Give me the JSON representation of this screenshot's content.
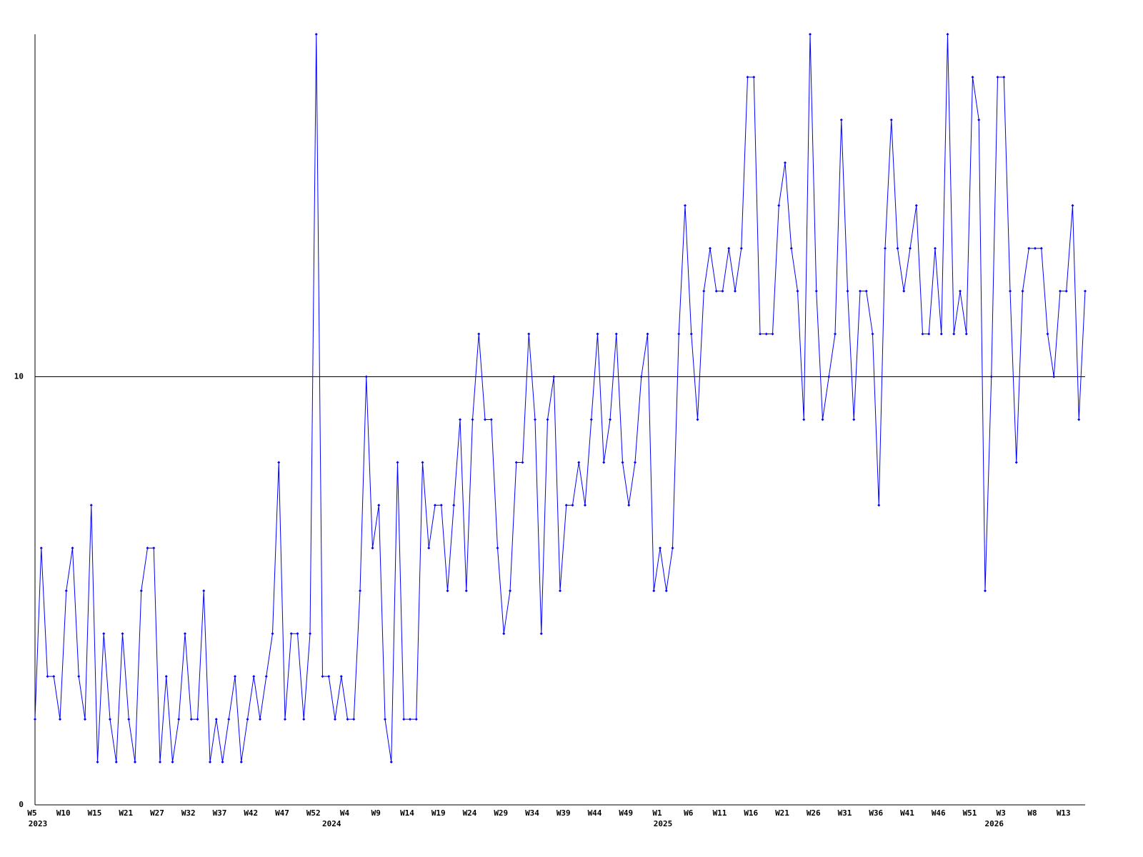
{
  "chart_data": {
    "type": "line",
    "color": "#0000ff",
    "values": [
      2,
      6,
      3,
      3,
      2,
      5,
      6,
      3,
      2,
      7,
      1,
      4,
      2,
      1,
      4,
      2,
      1,
      5,
      6,
      6,
      1,
      3,
      1,
      2,
      4,
      2,
      2,
      5,
      1,
      2,
      1,
      2,
      3,
      1,
      2,
      3,
      2,
      3,
      4,
      8,
      2,
      4,
      4,
      2,
      4,
      18,
      3,
      3,
      2,
      3,
      2,
      2,
      5,
      10,
      6,
      7,
      2,
      1,
      8,
      2,
      2,
      2,
      8,
      6,
      7,
      7,
      5,
      7,
      9,
      5,
      9,
      11,
      9,
      9,
      6,
      4,
      5,
      8,
      8,
      11,
      9,
      4,
      9,
      10,
      5,
      7,
      7,
      8,
      7,
      9,
      11,
      8,
      9,
      11,
      8,
      7,
      8,
      10,
      11,
      5,
      6,
      5,
      6,
      11,
      14,
      11,
      9,
      12,
      13,
      12,
      12,
      13,
      12,
      13,
      17,
      17,
      11,
      11,
      11,
      14,
      15,
      13,
      12,
      9,
      18,
      12,
      9,
      10,
      11,
      16,
      12,
      9,
      12,
      12,
      11,
      7,
      13,
      16,
      13,
      12,
      13,
      14,
      11,
      11,
      13,
      11,
      18,
      11,
      12,
      11,
      17,
      16,
      5,
      10,
      17,
      17,
      12,
      8,
      12,
      13,
      13,
      13,
      11,
      10,
      12,
      12,
      14,
      9,
      12
    ],
    "xlim": [
      0,
      168
    ],
    "xticks": [
      {
        "value": 0,
        "label": "W5"
      },
      {
        "value": 5,
        "label": "W10"
      },
      {
        "value": 10,
        "label": "W15"
      },
      {
        "value": 15,
        "label": "W21"
      },
      {
        "value": 20,
        "label": "W27"
      },
      {
        "value": 25,
        "label": "W32"
      },
      {
        "value": 30,
        "label": "W37"
      },
      {
        "value": 35,
        "label": "W42"
      },
      {
        "value": 40,
        "label": "W47"
      },
      {
        "value": 45,
        "label": "W52"
      },
      {
        "value": 50,
        "label": "W4"
      },
      {
        "value": 55,
        "label": "W9"
      },
      {
        "value": 60,
        "label": "W14"
      },
      {
        "value": 65,
        "label": "W19"
      },
      {
        "value": 70,
        "label": "W24"
      },
      {
        "value": 75,
        "label": "W29"
      },
      {
        "value": 80,
        "label": "W34"
      },
      {
        "value": 85,
        "label": "W39"
      },
      {
        "value": 90,
        "label": "W44"
      },
      {
        "value": 95,
        "label": "W49"
      },
      {
        "value": 100,
        "label": "W1"
      },
      {
        "value": 105,
        "label": "W6"
      },
      {
        "value": 110,
        "label": "W11"
      },
      {
        "value": 115,
        "label": "W16"
      },
      {
        "value": 120,
        "label": "W21"
      },
      {
        "value": 125,
        "label": "W26"
      },
      {
        "value": 130,
        "label": "W31"
      },
      {
        "value": 135,
        "label": "W36"
      },
      {
        "value": 140,
        "label": "W41"
      },
      {
        "value": 145,
        "label": "W46"
      },
      {
        "value": 150,
        "label": "W51"
      },
      {
        "value": 155,
        "label": "W3"
      },
      {
        "value": 160,
        "label": "W8"
      },
      {
        "value": 165,
        "label": "W13"
      }
    ],
    "year_labels": [
      {
        "value": 0,
        "label": "2023"
      },
      {
        "value": 47,
        "label": "2024"
      },
      {
        "value": 100,
        "label": "2025"
      },
      {
        "value": 153,
        "label": "2026"
      }
    ],
    "ylim": [
      0,
      18
    ],
    "yticks": [
      0,
      10
    ]
  }
}
